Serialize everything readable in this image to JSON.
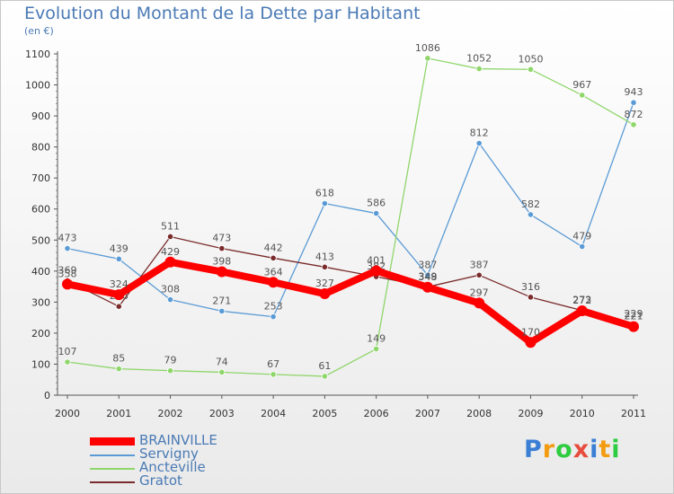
{
  "chart_data": {
    "type": "line",
    "title": "Evolution du Montant de la Dette par Habitant",
    "unit_label": "(en €)",
    "xlabel": "",
    "ylabel": "",
    "ylim": [
      0,
      1100
    ],
    "yticks": [
      0,
      100,
      200,
      300,
      400,
      500,
      600,
      700,
      800,
      900,
      1000,
      1100
    ],
    "categories": [
      "2000",
      "2001",
      "2002",
      "2003",
      "2004",
      "2005",
      "2006",
      "2007",
      "2008",
      "2009",
      "2010",
      "2011"
    ],
    "grid": false,
    "legend_position": "bottom-left",
    "series": [
      {
        "name": "Servigny",
        "color": "#5b9bd5",
        "values": [
          473,
          439,
          308,
          271,
          253,
          618,
          586,
          387,
          812,
          582,
          479,
          943
        ]
      },
      {
        "name": "Ancteville",
        "color": "#8fd66b",
        "values": [
          107,
          85,
          79,
          74,
          67,
          61,
          149,
          1086,
          1052,
          1050,
          967,
          872
        ]
      },
      {
        "name": "Gratot",
        "color": "#7a2b2b",
        "values": [
          369,
          286,
          511,
          473,
          442,
          413,
          382,
          349,
          387,
          316,
          273,
          229
        ]
      },
      {
        "name": "BRAINVILLE",
        "color": "#ff0000",
        "values": [
          358,
          324,
          429,
          398,
          364,
          327,
          401,
          348,
          297,
          170,
          272,
          221
        ]
      }
    ]
  },
  "legend": {
    "items": [
      {
        "name": "BRAINVILLE",
        "color": "#ff0000"
      },
      {
        "name": "Servigny",
        "color": "#5b9bd5"
      },
      {
        "name": "Ancteville",
        "color": "#8fd66b"
      },
      {
        "name": "Gratot",
        "color": "#7a2b2b"
      }
    ]
  },
  "logo": {
    "letters": [
      "P",
      "r",
      "o",
      "x",
      "i",
      "t",
      "i"
    ],
    "colors": [
      "#3a7fd5",
      "#f39c12",
      "#2ecc40",
      "#e74c3c",
      "#3a7fd5",
      "#f39c12",
      "#2ecc40"
    ]
  }
}
